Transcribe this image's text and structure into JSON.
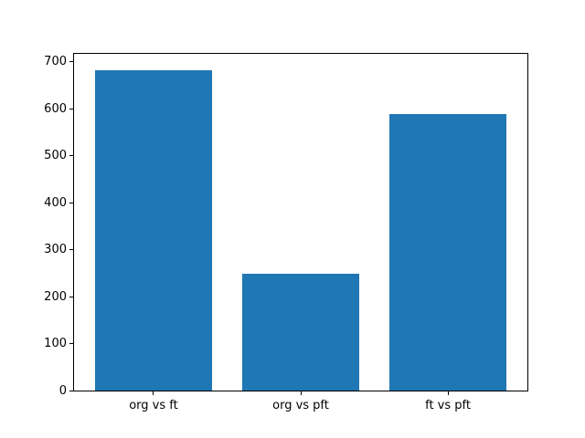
{
  "chart_data": {
    "type": "bar",
    "title": "",
    "xlabel": "",
    "ylabel": "",
    "categories": [
      "org vs ft",
      "org vs pft",
      "ft vs pft"
    ],
    "values": [
      683,
      248,
      589
    ],
    "yticks": [
      0,
      100,
      200,
      300,
      400,
      500,
      600,
      700
    ],
    "ylim": [
      0,
      717
    ],
    "grid": false,
    "legend": null,
    "bar_color": "#1f77b4",
    "axis_color": "#000000",
    "background_color": "#ffffff"
  }
}
